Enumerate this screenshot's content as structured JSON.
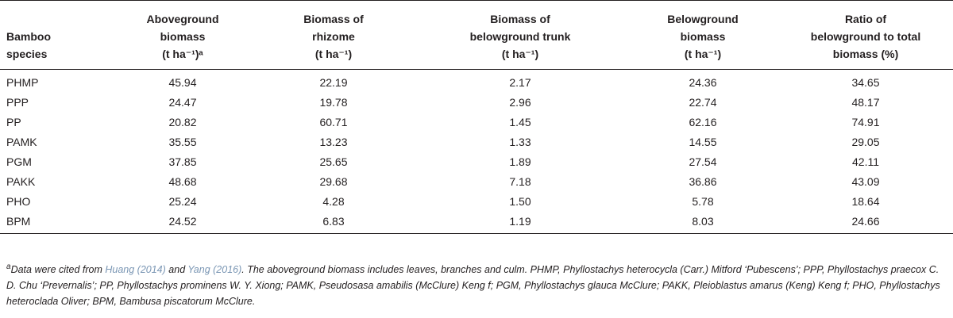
{
  "table": {
    "headers": [
      [
        "Bamboo",
        "species"
      ],
      [
        "Aboveground",
        "biomass",
        "(t ha⁻¹)ᵃ"
      ],
      [
        "Biomass of",
        "rhizome",
        "(t ha⁻¹)"
      ],
      [
        "Biomass of",
        "belowground trunk",
        "(t ha⁻¹)"
      ],
      [
        "Belowground",
        "biomass",
        "(t ha⁻¹)"
      ],
      [
        "Ratio of",
        "belowground to total",
        "biomass (%)"
      ]
    ],
    "rows": [
      [
        "PHMP",
        "45.94",
        "22.19",
        "2.17",
        "24.36",
        "34.65"
      ],
      [
        "PPP",
        "24.47",
        "19.78",
        "2.96",
        "22.74",
        "48.17"
      ],
      [
        "PP",
        "20.82",
        "60.71",
        "1.45",
        "62.16",
        "74.91"
      ],
      [
        "PAMK",
        "35.55",
        "13.23",
        "1.33",
        "14.55",
        "29.05"
      ],
      [
        "PGM",
        "37.85",
        "25.65",
        "1.89",
        "27.54",
        "42.11"
      ],
      [
        "PAKK",
        "48.68",
        "29.68",
        "7.18",
        "36.86",
        "43.09"
      ],
      [
        "PHO",
        "25.24",
        "4.28",
        "1.50",
        "5.78",
        "18.64"
      ],
      [
        "BPM",
        "24.52",
        "6.83",
        "1.19",
        "8.03",
        "24.66"
      ]
    ]
  },
  "footnote": {
    "marker": "a",
    "t1": "Data were cited from ",
    "ref1": "Huang (2014)",
    "t2": " and ",
    "ref2": "Yang (2016)",
    "t3": ". The aboveground biomass includes leaves, branches and culm. PHMP, Phyllostachys heterocycla (Carr.) Mitford ‘Pubescens’; PPP, Phyllostachys praecox C. D. Chu ‘Prevernalis’; PP, Phyllostachys prominens W. Y. Xiong; PAMK, Pseudosasa amabilis (McClure) Keng f; PGM, Phyllostachys glauca McClure; PAKK, Pleioblastus amarus (Keng) Keng f; PHO, Phyllostachys heteroclada Oliver; BPM, Bambusa piscatorum McClure."
  }
}
